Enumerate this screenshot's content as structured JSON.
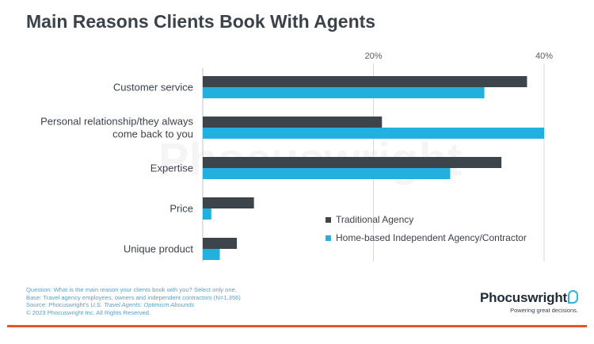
{
  "header": {
    "title": "Main Reasons Clients Book With Agents"
  },
  "watermark": {
    "text": "Phocuswright"
  },
  "chart_data": {
    "type": "bar",
    "orientation": "horizontal",
    "title": "Main Reasons Clients Book With Agents",
    "categories": [
      [
        "Customer service"
      ],
      [
        "Personal relationship/they always",
        "come back to you"
      ],
      [
        "Expertise"
      ],
      [
        "Price"
      ],
      [
        "Unique product"
      ]
    ],
    "series": [
      {
        "name": "Traditional Agency",
        "color": "#3d444b",
        "values": [
          38,
          21,
          35,
          6,
          4
        ]
      },
      {
        "name": "Home-based Independent Agency/Contractor",
        "color": "#23b0df",
        "values": [
          33,
          40,
          29,
          1,
          2
        ]
      }
    ],
    "xlim": [
      0,
      40
    ],
    "xticks": [
      20,
      40
    ],
    "xtick_labels": [
      "20%",
      "40%"
    ],
    "xlabel": "",
    "ylabel": "",
    "grid": true,
    "legend": "right"
  },
  "footnote": {
    "question": "Question: What is the main reason your clients book with you? Select only one.",
    "base": "Base: Travel agency employees, owners and independent contractors (N=1,356)",
    "source_prefix": "Source: Phocuswright's ",
    "source_title": "U.S. Travel Agents: Optimism Abounds",
    "copyright": "© 2023 Phocuswright Inc. All Rights Reserved."
  },
  "logo": {
    "name": "Phocuswright",
    "tagline": "Powering great decisions."
  }
}
